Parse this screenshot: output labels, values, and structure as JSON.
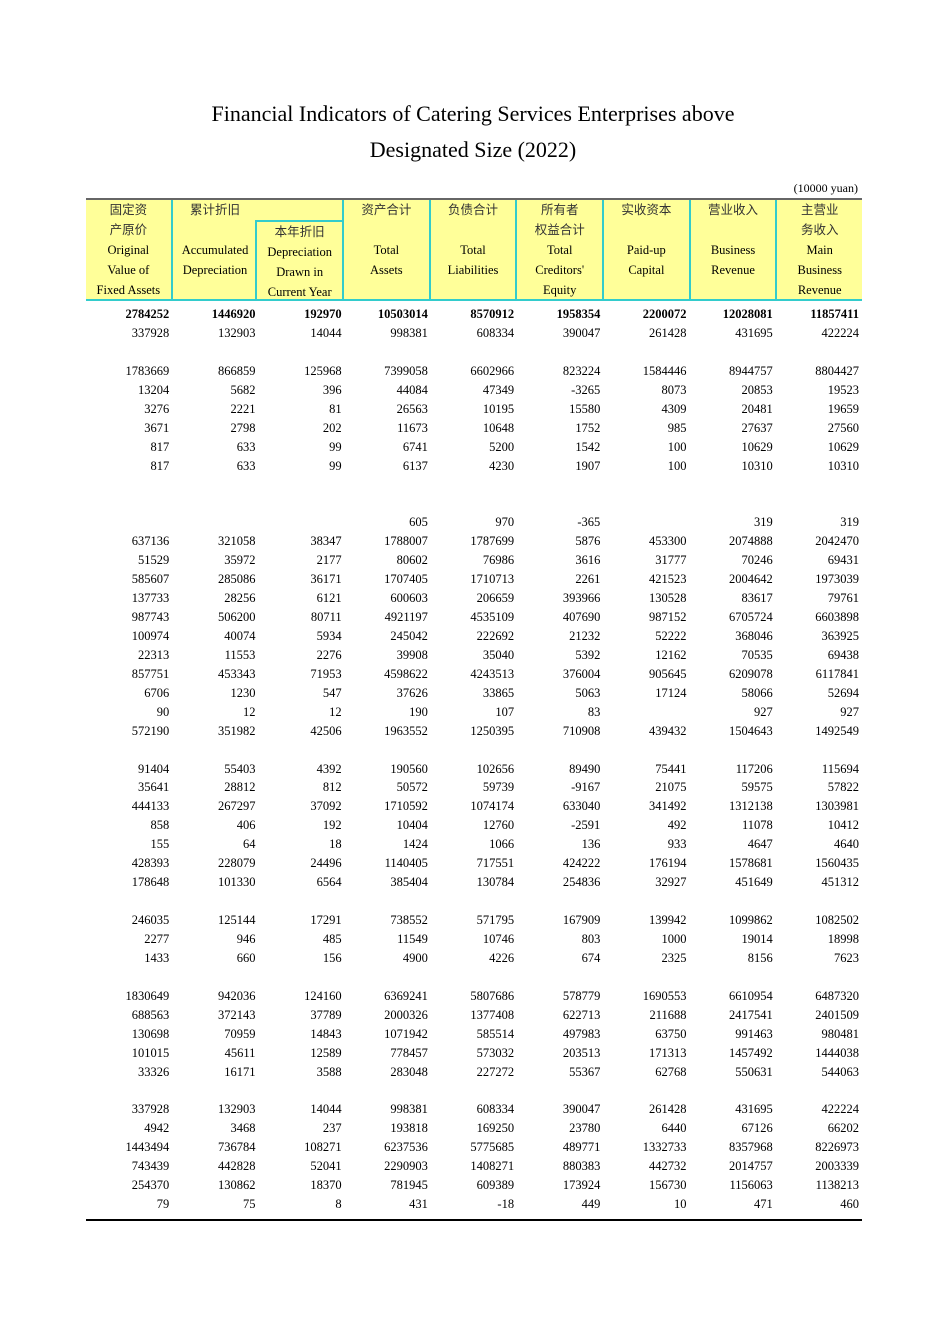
{
  "title_line1": "Financial Indicators of Catering Services Enterprises above",
  "title_line2": "Designated Size (2022)",
  "unit": "(10000 yuan)",
  "headers": [
    {
      "lines": [
        "固定资",
        "产原价",
        "Original",
        "Value of",
        "Fixed Assets"
      ]
    },
    {
      "lines": [
        "累计折旧",
        "",
        "Accumulated",
        "Depreciation",
        ""
      ]
    },
    {
      "lines": [
        "",
        "本年折旧",
        "Depreciation",
        "Drawn in",
        "Current Year"
      ]
    },
    {
      "lines": [
        "资产合计",
        "",
        "Total",
        "Assets",
        ""
      ]
    },
    {
      "lines": [
        "负债合计",
        "",
        "Total",
        "Liabilities",
        ""
      ]
    },
    {
      "lines": [
        "所有者",
        "权益合计",
        "Total",
        "Creditors'",
        "Equity"
      ]
    },
    {
      "lines": [
        "实收资本",
        "",
        "Paid-up",
        "Capital",
        ""
      ]
    },
    {
      "lines": [
        "营业收入",
        "",
        "Business",
        "Revenue",
        ""
      ]
    },
    {
      "lines": [
        "主营业",
        "务收入",
        "Main",
        "Business",
        "Revenue"
      ]
    }
  ],
  "rows": [
    [
      "2784252",
      "1446920",
      "192970",
      "10503014",
      "8570912",
      "1958354",
      "2200072",
      "12028081",
      "11857411"
    ],
    [
      "337928",
      "132903",
      "14044",
      "998381",
      "608334",
      "390047",
      "261428",
      "431695",
      "422224"
    ],
    [],
    [
      "1783669",
      "866859",
      "125968",
      "7399058",
      "6602966",
      "823224",
      "1584446",
      "8944757",
      "8804427"
    ],
    [
      "13204",
      "5682",
      "396",
      "44084",
      "47349",
      "-3265",
      "8073",
      "20853",
      "19523"
    ],
    [
      "3276",
      "2221",
      "81",
      "26563",
      "10195",
      "15580",
      "4309",
      "20481",
      "19659"
    ],
    [
      "3671",
      "2798",
      "202",
      "11673",
      "10648",
      "1752",
      "985",
      "27637",
      "27560"
    ],
    [
      "817",
      "633",
      "99",
      "6741",
      "5200",
      "1542",
      "100",
      "10629",
      "10629"
    ],
    [
      "817",
      "633",
      "99",
      "6137",
      "4230",
      "1907",
      "100",
      "10310",
      "10310"
    ],
    [],
    [],
    [
      "",
      "",
      "",
      "605",
      "970",
      "-365",
      "",
      "319",
      "319"
    ],
    [
      "637136",
      "321058",
      "38347",
      "1788007",
      "1787699",
      "5876",
      "453300",
      "2074888",
      "2042470"
    ],
    [
      "51529",
      "35972",
      "2177",
      "80602",
      "76986",
      "3616",
      "31777",
      "70246",
      "69431"
    ],
    [
      "585607",
      "285086",
      "36171",
      "1707405",
      "1710713",
      "2261",
      "421523",
      "2004642",
      "1973039"
    ],
    [
      "137733",
      "28256",
      "6121",
      "600603",
      "206659",
      "393966",
      "130528",
      "83617",
      "79761"
    ],
    [
      "987743",
      "506200",
      "80711",
      "4921197",
      "4535109",
      "407690",
      "987152",
      "6705724",
      "6603898"
    ],
    [
      "100974",
      "40074",
      "5934",
      "245042",
      "222692",
      "21232",
      "52222",
      "368046",
      "363925"
    ],
    [
      "22313",
      "11553",
      "2276",
      "39908",
      "35040",
      "5392",
      "12162",
      "70535",
      "69438"
    ],
    [
      "857751",
      "453343",
      "71953",
      "4598622",
      "4243513",
      "376004",
      "905645",
      "6209078",
      "6117841"
    ],
    [
      "6706",
      "1230",
      "547",
      "37626",
      "33865",
      "5063",
      "17124",
      "58066",
      "52694"
    ],
    [
      "90",
      "12",
      "12",
      "190",
      "107",
      "83",
      "",
      "927",
      "927"
    ],
    [
      "572190",
      "351982",
      "42506",
      "1963552",
      "1250395",
      "710908",
      "439432",
      "1504643",
      "1492549"
    ],
    [],
    [
      "91404",
      "55403",
      "4392",
      "190560",
      "102656",
      "89490",
      "75441",
      "117206",
      "115694"
    ],
    [
      "35641",
      "28812",
      "812",
      "50572",
      "59739",
      "-9167",
      "21075",
      "59575",
      "57822"
    ],
    [
      "444133",
      "267297",
      "37092",
      "1710592",
      "1074174",
      "633040",
      "341492",
      "1312138",
      "1303981"
    ],
    [
      "858",
      "406",
      "192",
      "10404",
      "12760",
      "-2591",
      "492",
      "11078",
      "10412"
    ],
    [
      "155",
      "64",
      "18",
      "1424",
      "1066",
      "136",
      "933",
      "4647",
      "4640"
    ],
    [
      "428393",
      "228079",
      "24496",
      "1140405",
      "717551",
      "424222",
      "176194",
      "1578681",
      "1560435"
    ],
    [
      "178648",
      "101330",
      "6564",
      "385404",
      "130784",
      "254836",
      "32927",
      "451649",
      "451312"
    ],
    [],
    [
      "246035",
      "125144",
      "17291",
      "738552",
      "571795",
      "167909",
      "139942",
      "1099862",
      "1082502"
    ],
    [
      "2277",
      "946",
      "485",
      "11549",
      "10746",
      "803",
      "1000",
      "19014",
      "18998"
    ],
    [
      "1433",
      "660",
      "156",
      "4900",
      "4226",
      "674",
      "2325",
      "8156",
      "7623"
    ],
    [],
    [
      "1830649",
      "942036",
      "124160",
      "6369241",
      "5807686",
      "578779",
      "1690553",
      "6610954",
      "6487320"
    ],
    [
      "688563",
      "372143",
      "37789",
      "2000326",
      "1377408",
      "622713",
      "211688",
      "2417541",
      "2401509"
    ],
    [
      "130698",
      "70959",
      "14843",
      "1071942",
      "585514",
      "497983",
      "63750",
      "991463",
      "980481"
    ],
    [
      "101015",
      "45611",
      "12589",
      "778457",
      "573032",
      "203513",
      "171313",
      "1457492",
      "1444038"
    ],
    [
      "33326",
      "16171",
      "3588",
      "283048",
      "227272",
      "55367",
      "62768",
      "550631",
      "544063"
    ],
    [],
    [
      "337928",
      "132903",
      "14044",
      "998381",
      "608334",
      "390047",
      "261428",
      "431695",
      "422224"
    ],
    [
      "4942",
      "3468",
      "237",
      "193818",
      "169250",
      "23780",
      "6440",
      "67126",
      "66202"
    ],
    [
      "1443494",
      "736784",
      "108271",
      "6237536",
      "5775685",
      "489771",
      "1332733",
      "8357968",
      "8226973"
    ],
    [
      "743439",
      "442828",
      "52041",
      "2290903",
      "1408271",
      "880383",
      "442732",
      "2014757",
      "2003339"
    ],
    [
      "254370",
      "130862",
      "18370",
      "781945",
      "609389",
      "173924",
      "156730",
      "1156063",
      "1138213"
    ],
    [
      "79",
      "75",
      "8",
      "431",
      "-18",
      "449",
      "10",
      "471",
      "460"
    ]
  ],
  "colors": {
    "header_bg": "#ffff99",
    "header_border": "#33cccc"
  }
}
